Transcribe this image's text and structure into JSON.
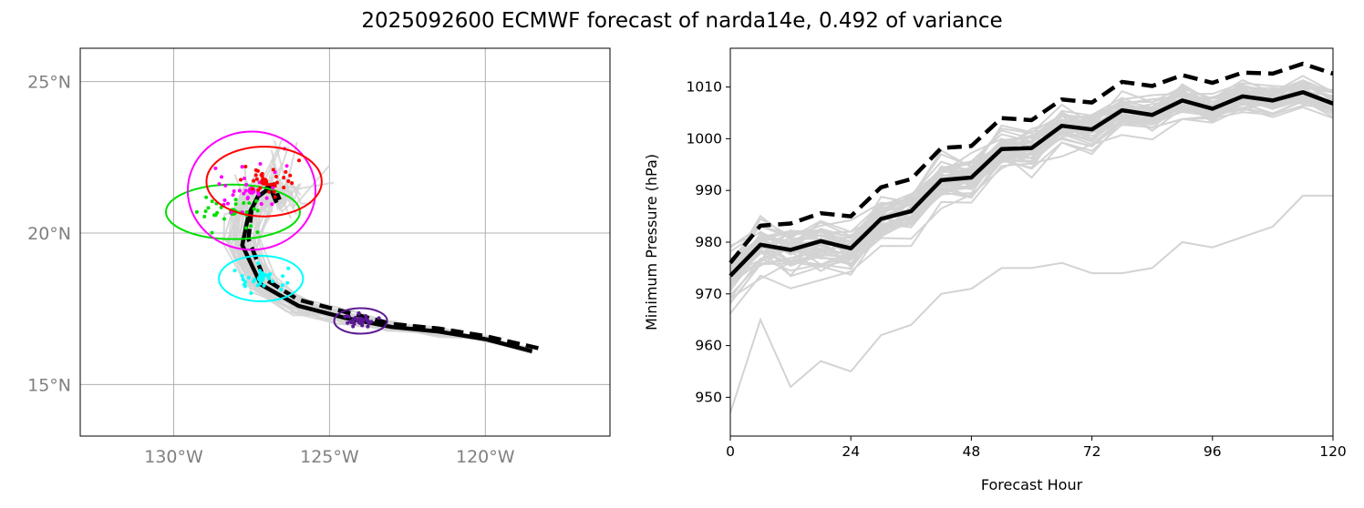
{
  "title": "2025092600 ECMWF forecast of narda14e, 0.492 of variance",
  "colors": {
    "ensemble": "#d3d3d3",
    "mean": "#000000",
    "cluster_red": "#ff0000",
    "cluster_magenta": "#ff00ff",
    "cluster_green": "#00e000",
    "cluster_cyan": "#00ffff",
    "cluster_purple": "#5b1a94",
    "grid": "#b0b0b0"
  },
  "chart_data": [
    {
      "type": "line",
      "panel": "track map",
      "xlim": [
        -133,
        -116
      ],
      "ylim": [
        13.3,
        26.1
      ],
      "grid": true,
      "x_ticks": [
        {
          "value": -130,
          "label": "130°W"
        },
        {
          "value": -125,
          "label": "125°W"
        },
        {
          "value": -120,
          "label": "120°W"
        }
      ],
      "y_ticks": [
        {
          "value": 15,
          "label": "15°N"
        },
        {
          "value": 20,
          "label": "20°N"
        },
        {
          "value": 25,
          "label": "25°N"
        }
      ],
      "mean_track": {
        "lon": [
          -118.5,
          -120,
          -121.5,
          -123,
          -124.5,
          -126,
          -127.2,
          -127.8,
          -127.6,
          -127.3,
          -126.9,
          -126.7
        ],
        "lat": [
          16.1,
          16.5,
          16.75,
          16.9,
          17.2,
          17.6,
          18.3,
          19.6,
          20.6,
          21.2,
          21.5,
          21.0
        ]
      },
      "dashed_track": {
        "lon": [
          -118.3,
          -120,
          -121.5,
          -123,
          -124.5,
          -126,
          -127.1,
          -127.6,
          -127.5,
          -127.2,
          -126.8,
          -126.6
        ],
        "lat": [
          16.2,
          16.6,
          16.85,
          17.0,
          17.4,
          17.8,
          18.5,
          19.8,
          20.8,
          21.4,
          21.6,
          21.1
        ]
      },
      "clusters": [
        {
          "color": "cluster_purple",
          "center": [
            -124,
            17.1
          ],
          "radii": [
            0.85,
            0.42
          ]
        },
        {
          "color": "cluster_cyan",
          "center": [
            -127.2,
            18.5
          ],
          "radii": [
            1.35,
            0.75
          ]
        },
        {
          "color": "cluster_green",
          "center": [
            -128.1,
            20.7
          ],
          "radii": [
            2.15,
            0.9
          ]
        },
        {
          "color": "cluster_magenta",
          "center": [
            -127.5,
            21.4
          ],
          "radii": [
            2.05,
            1.95
          ]
        },
        {
          "color": "cluster_red",
          "center": [
            -127.1,
            21.7
          ],
          "radii": [
            1.85,
            1.15
          ]
        }
      ]
    },
    {
      "type": "line",
      "panel": "minimum pressure",
      "xlabel": "Forecast Hour",
      "ylabel": "Minimum Pressure (hPa)",
      "xlim": [
        0,
        120
      ],
      "ylim": [
        942.5,
        1017.5
      ],
      "x_ticks": [
        0,
        24,
        48,
        72,
        96,
        120
      ],
      "y_ticks": [
        950,
        960,
        970,
        980,
        990,
        1000,
        1010
      ],
      "x": [
        0,
        6,
        12,
        18,
        24,
        30,
        36,
        42,
        48,
        54,
        60,
        66,
        72,
        78,
        84,
        90,
        96,
        102,
        108,
        114,
        120
      ],
      "series": [
        {
          "style": "solid",
          "color": "mean",
          "values": [
            973.5,
            979.5,
            978.5,
            980.2,
            978.8,
            984.5,
            986,
            992,
            992.5,
            998,
            998.2,
            1002.5,
            1001.8,
            1005.5,
            1004.6,
            1007.4,
            1005.8,
            1008.2,
            1007.4,
            1009,
            1006.8
          ]
        },
        {
          "style": "dashed",
          "color": "mean",
          "values": [
            976,
            983.2,
            983.6,
            985.6,
            985,
            990.6,
            992.2,
            998.2,
            998.6,
            1004,
            1003.6,
            1007.6,
            1007,
            1011,
            1010.2,
            1012.3,
            1010.8,
            1012.8,
            1012.6,
            1014.5,
            1012.6
          ]
        }
      ]
    }
  ]
}
